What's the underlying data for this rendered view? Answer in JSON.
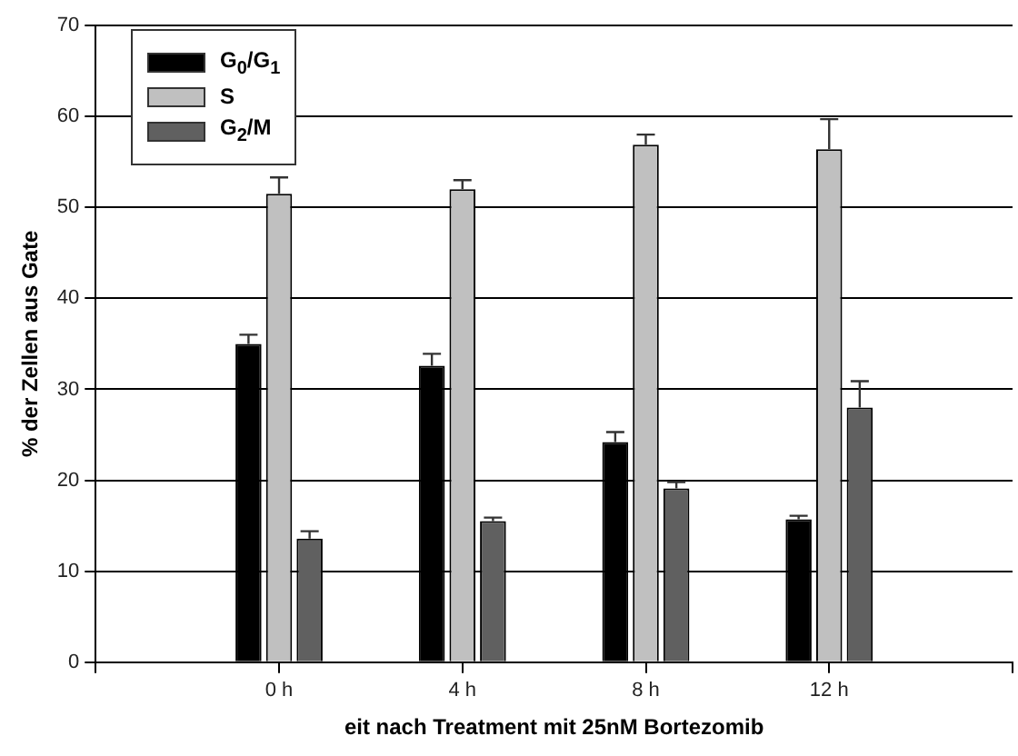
{
  "chart_data": {
    "type": "bar",
    "xlabel": "eit nach Treatment mit 25nM Bortezomib",
    "ylabel": "% der Zellen aus Gate",
    "categories": [
      null,
      "0 h",
      "4 h",
      "8 h",
      "12 h",
      null
    ],
    "series": [
      {
        "name": "G$_{0}$/G$_{1}$",
        "color": "#000000",
        "values": [
          null,
          35.0,
          32.6,
          24.2,
          15.7,
          null
        ],
        "errors": [
          null,
          1.0,
          1.3,
          1.1,
          0.4,
          null
        ]
      },
      {
        "name": "S",
        "color": "#c0c0c0",
        "values": [
          null,
          51.5,
          52.0,
          56.9,
          56.4,
          null
        ],
        "errors": [
          null,
          1.8,
          1.0,
          1.1,
          3.3,
          null
        ]
      },
      {
        "name": "G$_{2}$/M",
        "color": "#606060",
        "values": [
          null,
          13.6,
          15.5,
          19.1,
          28.0,
          null
        ],
        "errors": [
          null,
          0.8,
          0.4,
          0.7,
          2.9,
          null
        ]
      }
    ],
    "ylim": [
      0,
      70
    ],
    "yticks": [
      0,
      10,
      20,
      30,
      40,
      50,
      60,
      70
    ],
    "grid": "y",
    "legend": "top left"
  }
}
